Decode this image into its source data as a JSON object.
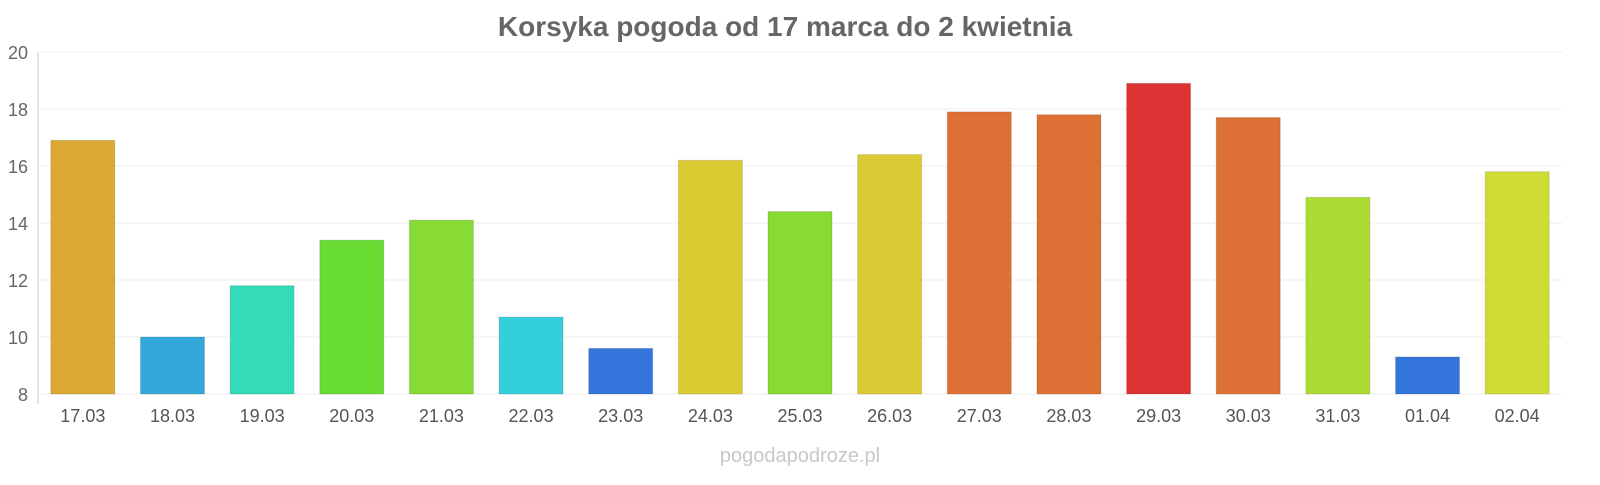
{
  "chart_data": {
    "type": "bar",
    "title": "Korsyka pogoda od 17 marca do 2 kwietnia",
    "xlabel": "",
    "ylabel": "",
    "ylim": [
      8,
      20
    ],
    "yticks": [
      8,
      10,
      12,
      14,
      16,
      18,
      20
    ],
    "grid": true,
    "categories": [
      "17.03",
      "18.03",
      "19.03",
      "20.03",
      "21.03",
      "22.03",
      "23.03",
      "24.03",
      "25.03",
      "26.03",
      "27.03",
      "28.03",
      "29.03",
      "30.03",
      "31.03",
      "01.04",
      "02.04"
    ],
    "values": [
      16.9,
      10.0,
      11.8,
      13.4,
      14.1,
      10.7,
      9.6,
      16.2,
      14.4,
      16.4,
      17.9,
      17.8,
      18.9,
      17.7,
      14.9,
      9.3,
      15.8
    ],
    "colors": [
      "#dba833",
      "#33a6da",
      "#33dbb8",
      "#68dc33",
      "#88db33",
      "#33cfdb",
      "#3476dc",
      "#dbcb33",
      "#88db33",
      "#dbca33",
      "#dd7034",
      "#dd7034",
      "#db3333",
      "#dd7034",
      "#acdb33",
      "#3476dc",
      "#cfdc33"
    ],
    "watermark": "pogodapodroze.pl"
  }
}
